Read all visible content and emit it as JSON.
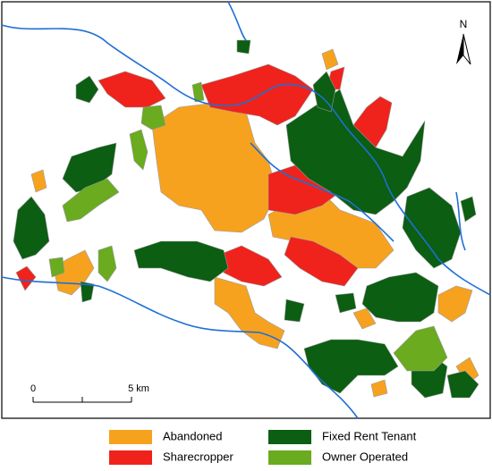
{
  "legend": {
    "items": [
      {
        "label": "Abandoned",
        "color": "#f7a21e"
      },
      {
        "label": "Sharecropper",
        "color": "#f0221c"
      },
      {
        "label": "Fixed Rent Tenant",
        "color": "#0b5e12"
      },
      {
        "label": "Owner Operated",
        "color": "#6aab1f"
      }
    ]
  },
  "scale_bar": {
    "labels": [
      "0",
      "5 km"
    ]
  },
  "north_arrow": {
    "label": "N"
  }
}
